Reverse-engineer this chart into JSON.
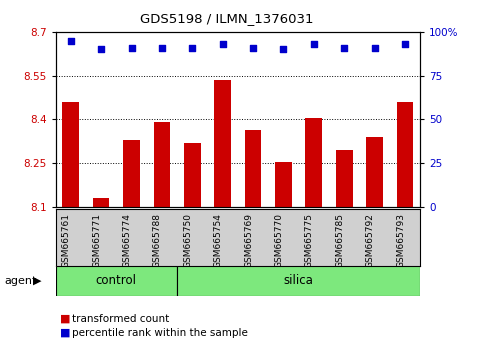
{
  "title": "GDS5198 / ILMN_1376031",
  "categories": [
    "GSM665761",
    "GSM665771",
    "GSM665774",
    "GSM665788",
    "GSM665750",
    "GSM665754",
    "GSM665769",
    "GSM665770",
    "GSM665775",
    "GSM665785",
    "GSM665792",
    "GSM665793"
  ],
  "bar_values": [
    8.46,
    8.13,
    8.33,
    8.39,
    8.32,
    8.535,
    8.365,
    8.255,
    8.405,
    8.295,
    8.34,
    8.46
  ],
  "blue_pct": [
    95,
    90,
    91,
    91,
    91,
    93,
    91,
    90,
    93,
    91,
    91,
    93
  ],
  "bar_color": "#cc0000",
  "blue_color": "#0000cc",
  "ylim_left": [
    8.1,
    8.7
  ],
  "ylim_right": [
    0,
    100
  ],
  "yticks_left": [
    8.1,
    8.25,
    8.4,
    8.55,
    8.7
  ],
  "yticks_right": [
    0,
    25,
    50,
    75,
    100
  ],
  "ytick_labels_left": [
    "8.1",
    "8.25",
    "8.4",
    "8.55",
    "8.7"
  ],
  "ytick_labels_right": [
    "0",
    "25",
    "50",
    "75",
    "100%"
  ],
  "grid_values": [
    8.25,
    8.4,
    8.55
  ],
  "control_samples": 4,
  "silica_samples": 8,
  "control_label": "control",
  "silica_label": "silica",
  "agent_label": "agent",
  "legend_bar_label": "transformed count",
  "legend_dot_label": "percentile rank within the sample",
  "green_color": "#7de87d",
  "gray_color": "#d0d0d0",
  "bar_width": 0.55
}
